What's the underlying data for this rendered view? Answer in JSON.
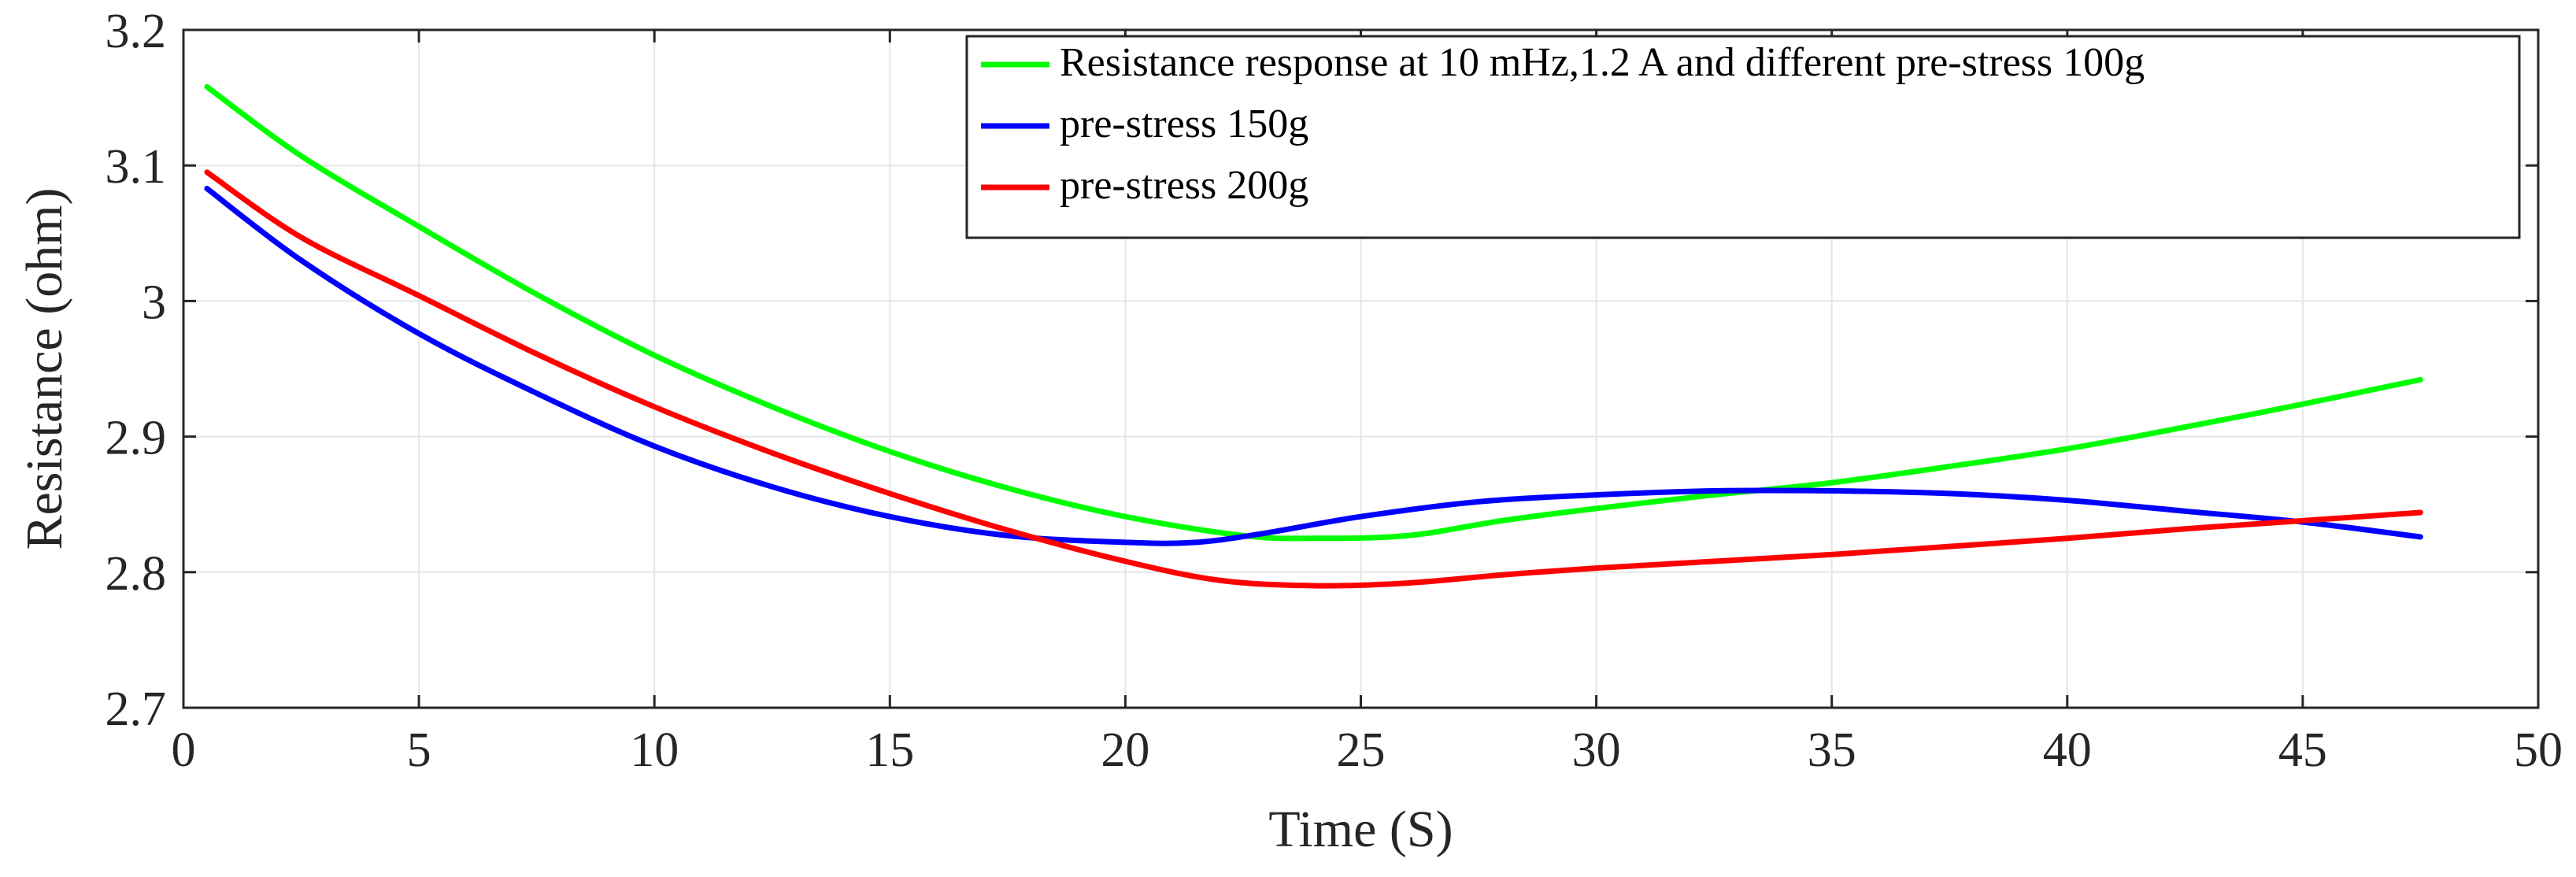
{
  "chart_data": {
    "type": "line",
    "title": "",
    "xlabel": "Time (S)",
    "ylabel": "Resistance (ohm)",
    "xlim": [
      0,
      50
    ],
    "ylim": [
      2.7,
      3.2
    ],
    "xticks": [
      0,
      5,
      10,
      15,
      20,
      25,
      30,
      35,
      40,
      45,
      50
    ],
    "xtick_labels": [
      "0",
      "5",
      "10",
      "15",
      "20",
      "25",
      "30",
      "35",
      "40",
      "45",
      "50"
    ],
    "yticks": [
      2.7,
      2.8,
      2.9,
      3.0,
      3.1,
      3.2
    ],
    "ytick_labels": [
      "2.7",
      "2.8",
      "2.9",
      "3",
      "3.1",
      "3.2"
    ],
    "grid": true,
    "legend_position": "top-right",
    "series": [
      {
        "name": "Resistance response at 10 mHz,1.2 A and different pre-stress 100g",
        "color": "#00ff00",
        "x": [
          0.5,
          2.5,
          5,
          7.5,
          10,
          12.5,
          15,
          17.5,
          20,
          22.5,
          24,
          26,
          28,
          30,
          32.5,
          35,
          37.5,
          40,
          42.5,
          45,
          47.5
        ],
        "y": [
          3.158,
          3.107,
          3.055,
          3.005,
          2.96,
          2.922,
          2.889,
          2.862,
          2.841,
          2.827,
          2.825,
          2.827,
          2.838,
          2.847,
          2.857,
          2.866,
          2.878,
          2.891,
          2.907,
          2.924,
          2.942
        ]
      },
      {
        "name": "pre-stress 150g",
        "color": "#0000ff",
        "x": [
          0.5,
          2.5,
          5,
          7.5,
          10,
          12.5,
          15,
          17.5,
          20,
          21.5,
          23,
          25,
          27.5,
          30,
          32.5,
          35,
          37.5,
          40,
          42.5,
          45,
          47.5
        ],
        "y": [
          3.083,
          3.03,
          2.976,
          2.932,
          2.893,
          2.863,
          2.841,
          2.827,
          2.822,
          2.822,
          2.829,
          2.841,
          2.852,
          2.857,
          2.86,
          2.86,
          2.858,
          2.853,
          2.845,
          2.837,
          2.826
        ]
      },
      {
        "name": "pre-stress 200g",
        "color": "#ff0000",
        "x": [
          0.5,
          2.5,
          5,
          7.5,
          10,
          12.5,
          15,
          17.5,
          20,
          22,
          24,
          26,
          28,
          30,
          32.5,
          35,
          37.5,
          40,
          42.5,
          45,
          47.5
        ],
        "y": [
          3.095,
          3.047,
          3.004,
          2.961,
          2.922,
          2.888,
          2.858,
          2.831,
          2.808,
          2.794,
          2.79,
          2.792,
          2.798,
          2.803,
          2.808,
          2.813,
          2.819,
          2.825,
          2.832,
          2.838,
          2.844
        ]
      }
    ]
  }
}
